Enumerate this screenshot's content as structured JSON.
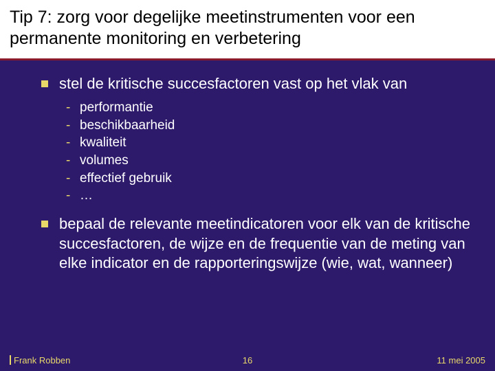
{
  "colors": {
    "background": "#2e1a6b",
    "title_bg": "#ffffff",
    "title_text": "#000000",
    "divider": "#8a1a2b",
    "body_text": "#ffffff",
    "bullet_square": "#e8d86a",
    "dash": "#e8d86a",
    "footer_text": "#e8d86a"
  },
  "typography": {
    "title_fontsize": 25,
    "lvl1_fontsize": 22,
    "lvl2_fontsize": 19,
    "footer_fontsize": 13,
    "font_family": "Arial"
  },
  "title": "Tip 7: zorg voor degelijke meetinstrumenten voor een permanente monitoring en verbetering",
  "bullets": [
    {
      "text": "stel de kritische succesfactoren vast op het vlak van",
      "sub": [
        "performantie",
        "beschikbaarheid",
        "kwaliteit",
        "volumes",
        "effectief gebruik",
        "…"
      ]
    },
    {
      "text": "bepaal de relevante meetindicatoren voor elk van de kritische succesfactoren, de wijze en de frequentie van de meting van elke indicator en de rapporteringswijze (wie, wat, wanneer)",
      "sub": []
    }
  ],
  "footer": {
    "author": "Frank Robben",
    "page": "16",
    "date": "11 mei 2005"
  }
}
